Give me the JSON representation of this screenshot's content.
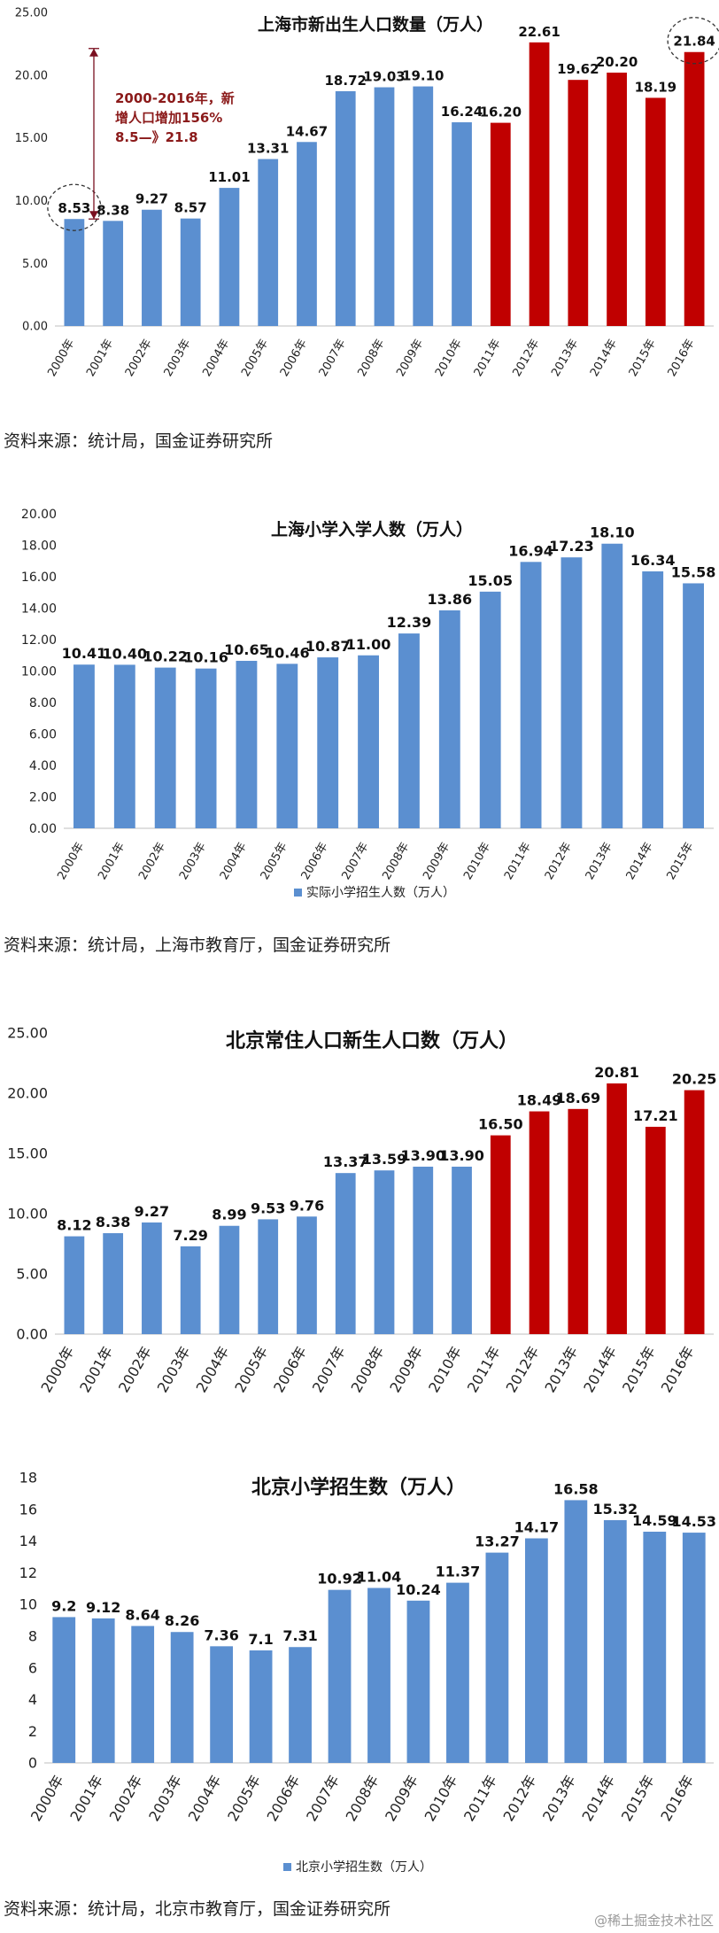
{
  "chart_data": [
    {
      "type": "bar",
      "title": "上海市新出生人口数量（万人）",
      "categories": [
        "2000年",
        "2001年",
        "2002年",
        "2003年",
        "2004年",
        "2005年",
        "2006年",
        "2007年",
        "2008年",
        "2009年",
        "2010年",
        "2011年",
        "2012年",
        "2013年",
        "2014年",
        "2015年",
        "2016年"
      ],
      "values": [
        8.53,
        8.38,
        9.27,
        8.57,
        11.01,
        13.31,
        14.67,
        18.72,
        19.03,
        19.1,
        16.24,
        16.2,
        22.61,
        19.62,
        20.2,
        18.19,
        21.84
      ],
      "value_labels": [
        "8.53",
        "8.38",
        "9.27",
        "8.57",
        "11.01",
        "13.31",
        "14.67",
        "18.72",
        "19.03",
        "19.10",
        "16.24",
        "16.20",
        "22.61",
        "19.62",
        "20.20",
        "18.19",
        "21.84"
      ],
      "yticks": [
        "0.00",
        "5.00",
        "10.00",
        "15.00",
        "20.00",
        "25.00"
      ],
      "ylim": [
        0,
        25
      ],
      "grid": false,
      "legend": "",
      "colors": {
        "blue": "#5b8fd0",
        "red": "#c00000"
      },
      "red_from_index": 11,
      "annotation": {
        "line1": "2000-2016年，新",
        "line2": "增人口增加156%",
        "line3": "8.5—》21.8"
      }
    },
    {
      "type": "bar",
      "title": "上海小学入学人数（万人）",
      "categories": [
        "2000年",
        "2001年",
        "2002年",
        "2003年",
        "2004年",
        "2005年",
        "2006年",
        "2007年",
        "2008年",
        "2009年",
        "2010年",
        "2011年",
        "2012年",
        "2013年",
        "2014年",
        "2015年"
      ],
      "values": [
        10.41,
        10.4,
        10.22,
        10.16,
        10.65,
        10.46,
        10.87,
        11.0,
        12.39,
        13.86,
        15.05,
        16.94,
        17.23,
        18.1,
        16.34,
        15.58
      ],
      "value_labels": [
        "10.41",
        "10.40",
        "10.22",
        "10.16",
        "10.65",
        "10.46",
        "10.87",
        "11.00",
        "12.39",
        "13.86",
        "15.05",
        "16.94",
        "17.23",
        "18.10",
        "16.34",
        "15.58"
      ],
      "yticks": [
        "0.00",
        "2.00",
        "4.00",
        "6.00",
        "8.00",
        "10.00",
        "12.00",
        "14.00",
        "16.00",
        "18.00",
        "20.00"
      ],
      "ylim": [
        0,
        20
      ],
      "grid": false,
      "legend": "实际小学招生人数（万人）",
      "colors": {
        "blue": "#5b8fd0"
      }
    },
    {
      "type": "bar",
      "title": "北京常住人口新生人口数（万人）",
      "categories": [
        "2000年",
        "2001年",
        "2002年",
        "2003年",
        "2004年",
        "2005年",
        "2006年",
        "2007年",
        "2008年",
        "2009年",
        "2010年",
        "2011年",
        "2012年",
        "2013年",
        "2014年",
        "2015年",
        "2016年"
      ],
      "values": [
        8.12,
        8.38,
        9.27,
        7.29,
        8.99,
        9.53,
        9.76,
        13.37,
        13.59,
        13.9,
        13.9,
        16.5,
        18.49,
        18.69,
        20.81,
        17.21,
        20.25
      ],
      "value_labels": [
        "8.12",
        "8.38",
        "9.27",
        "7.29",
        "8.99",
        "9.53",
        "9.76",
        "13.37",
        "13.59",
        "13.90",
        "13.90",
        "16.50",
        "18.49",
        "18.69",
        "20.81",
        "17.21",
        "20.25"
      ],
      "yticks": [
        "0.00",
        "5.00",
        "10.00",
        "15.00",
        "20.00",
        "25.00"
      ],
      "ylim": [
        0,
        25
      ],
      "grid": false,
      "legend": "",
      "colors": {
        "blue": "#5b8fd0",
        "red": "#c00000"
      },
      "red_from_index": 11
    },
    {
      "type": "bar",
      "title": "北京小学招生数（万人）",
      "categories": [
        "2000年",
        "2001年",
        "2002年",
        "2003年",
        "2004年",
        "2005年",
        "2006年",
        "2007年",
        "2008年",
        "2009年",
        "2010年",
        "2011年",
        "2012年",
        "2013年",
        "2014年",
        "2015年",
        "2016年"
      ],
      "values": [
        9.2,
        9.12,
        8.64,
        8.26,
        7.36,
        7.1,
        7.31,
        10.92,
        11.04,
        10.24,
        11.37,
        13.27,
        14.17,
        16.58,
        15.32,
        14.59,
        14.53
      ],
      "value_labels": [
        "9.2",
        "9.12",
        "8.64",
        "8.26",
        "7.36",
        "7.1",
        "7.31",
        "10.92",
        "11.04",
        "10.24",
        "11.37",
        "13.27",
        "14.17",
        "16.58",
        "15.32",
        "14.59",
        "14.53"
      ],
      "yticks": [
        "0",
        "2",
        "4",
        "6",
        "8",
        "10",
        "12",
        "14",
        "16",
        "18"
      ],
      "ylim": [
        0,
        18
      ],
      "grid": false,
      "legend": "北京小学招生数（万人）",
      "colors": {
        "blue": "#5b8fd0"
      }
    }
  ],
  "sources": {
    "chart1": "资料来源：统计局，国金证券研究所",
    "chart2": "资料来源：统计局，上海市教育厅，国金证券研究所",
    "chart4": "资料来源：统计局，北京市教育厅，国金证券研究所"
  },
  "watermark": "@稀土掘金技术社区"
}
